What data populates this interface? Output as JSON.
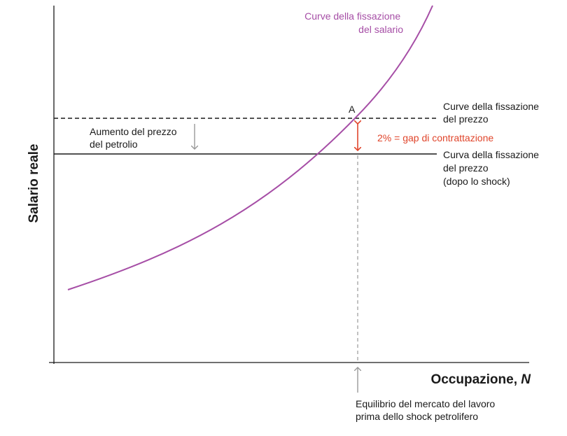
{
  "axes": {
    "x_title": "Occupazione, ",
    "x_title_var": "N",
    "y_title": "Salario reale"
  },
  "labels": {
    "wage_curve": [
      "Curve della fissazione",
      "del salario"
    ],
    "price_curve_before": [
      "Curve della fissazione",
      "del prezzo"
    ],
    "price_curve_after": [
      "Curva della fissazione",
      "del prezzo",
      "(dopo lo shock)"
    ],
    "oil_price_increase": [
      "Aumento del prezzo",
      "del petrolio"
    ],
    "point_a": "A",
    "bargaining_gap": "2% = gap di contrattazione",
    "equilibrium_note": [
      "Equilibrio del mercato del lavoro",
      "prima dello shock petrolifero"
    ]
  },
  "colors": {
    "wage_curve": "#a64ea6",
    "gap_arrow": "#e0452b",
    "axis": "#1a1a1a",
    "guide": "#999999"
  }
}
